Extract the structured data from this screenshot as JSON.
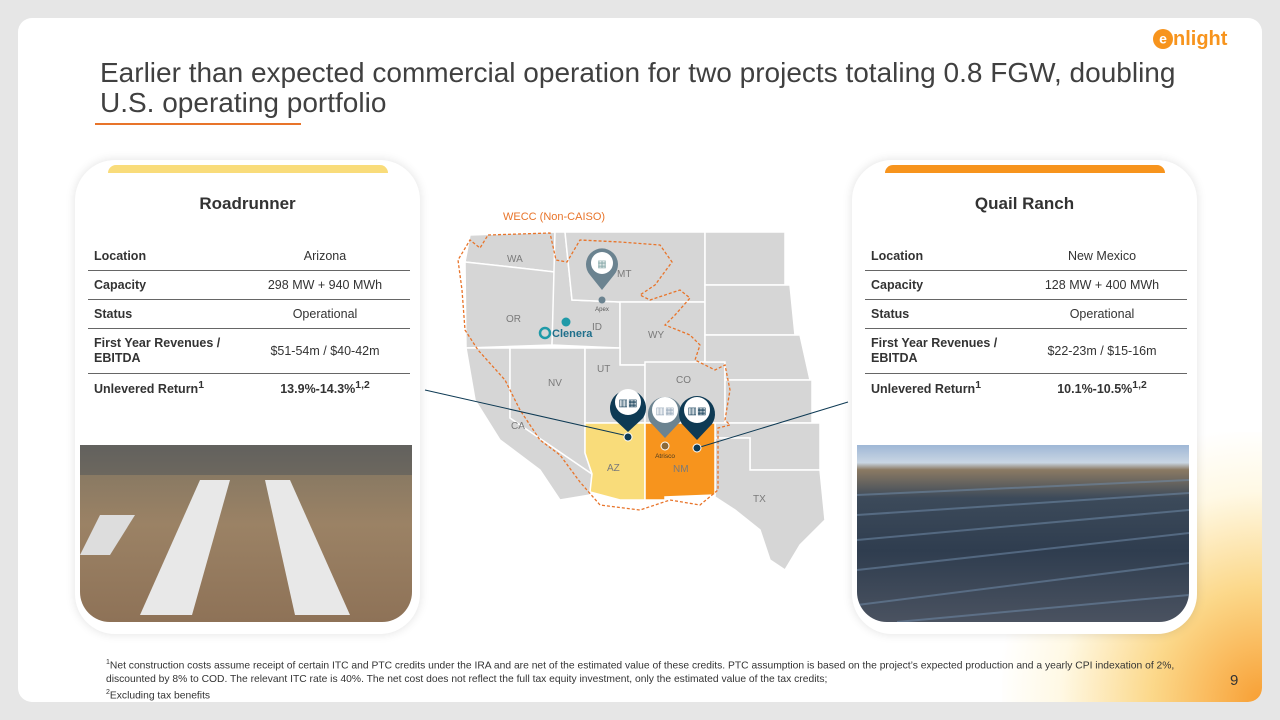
{
  "header": {
    "title": "Earlier than expected commercial operation for two projects totaling 0.8 FGW, doubling U.S. operating portfolio",
    "logo_text": "enlight"
  },
  "colors": {
    "accent_orange": "#f7941d",
    "accent_yellow": "#f9dc7a",
    "pin_dark": "#0e3a54",
    "pin_gray": "#6b8390",
    "wecc_boundary": "#e8742a"
  },
  "projects": [
    {
      "name": "Roadrunner",
      "rows": [
        {
          "label": "Location",
          "value": "Arizona"
        },
        {
          "label": "Capacity",
          "value": "298 MW + 940 MWh"
        },
        {
          "label": "Status",
          "value": "Operational"
        },
        {
          "label": "First Year Revenues / EBITDA",
          "value": "$51-54m / $40-42m"
        },
        {
          "label": "Unlevered Return",
          "label_sup": "1",
          "value": "13.9%-14.3%",
          "value_sup": "1,2"
        }
      ],
      "photo": "battery-storage-aerial-photo"
    },
    {
      "name": "Quail Ranch",
      "rows": [
        {
          "label": "Location",
          "value": "New Mexico"
        },
        {
          "label": "Capacity",
          "value": "128 MW + 400 MWh"
        },
        {
          "label": "Status",
          "value": "Operational"
        },
        {
          "label": "First Year Revenues / EBITDA",
          "value": "$22-23m / $15-16m"
        },
        {
          "label": "Unlevered Return",
          "label_sup": "1",
          "value": "10.1%-10.5%",
          "value_sup": "1,2"
        }
      ],
      "photo": "solar-field-aerial-photo"
    }
  ],
  "map": {
    "region_label": "WECC (Non-CAISO)",
    "states": [
      "WA",
      "OR",
      "CA",
      "NV",
      "ID",
      "MT",
      "WY",
      "UT",
      "CO",
      "AZ",
      "NM",
      "TX"
    ],
    "pins": [
      {
        "label": "Apex",
        "icon": "solar-panel-icon",
        "style": "gray"
      },
      {
        "label": "",
        "icon": "battery-solar-icon",
        "style": "dark"
      },
      {
        "label": "Atrisco",
        "icon": "battery-solar-icon",
        "style": "gray"
      },
      {
        "label": "",
        "icon": "battery-solar-icon",
        "style": "dark"
      }
    ],
    "company_logo": "Clenera"
  },
  "footnote": {
    "line1_sup": "1",
    "line1": "Net construction costs assume receipt of certain ITC and PTC credits under the IRA and are net of the estimated value of these credits. PTC assumption is based on the project’s expected production and a yearly CPI indexation of 2%, discounted by 8% to COD. The relevant ITC rate is 40%. The net cost does not reflect the full tax equity investment, only the estimated value of the tax credits;",
    "line2_sup": "2",
    "line2": "Excluding tax benefits"
  },
  "page_number": "9"
}
